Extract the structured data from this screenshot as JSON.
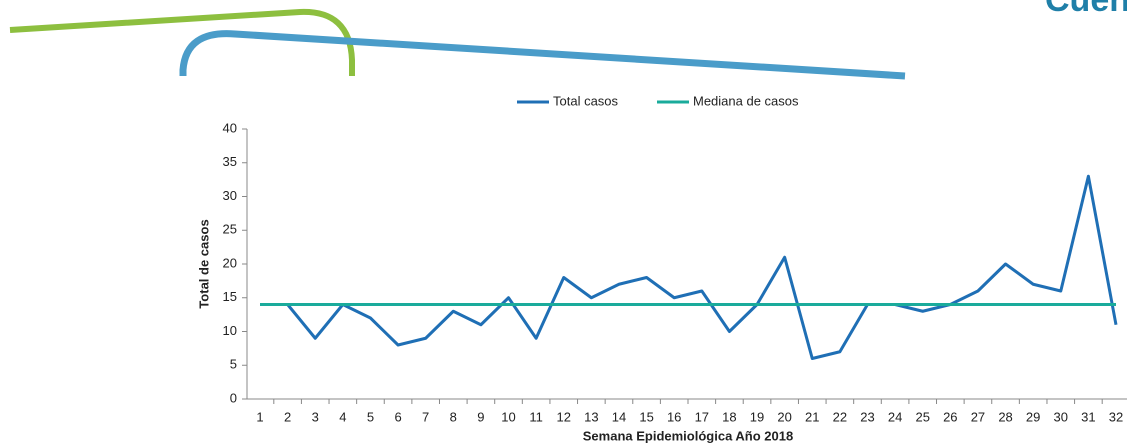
{
  "logo": "Cuenta C",
  "chart_data": {
    "type": "line",
    "x_label": "Semana Epidemiológica Año 2018",
    "y_label": "Total de casos",
    "categories": [
      1,
      2,
      3,
      4,
      5,
      6,
      7,
      8,
      9,
      10,
      11,
      12,
      13,
      14,
      15,
      16,
      17,
      18,
      19,
      20,
      21,
      22,
      23,
      24,
      25,
      26,
      27,
      28,
      29,
      30,
      31,
      32
    ],
    "series": [
      {
        "name": "Total casos",
        "color": "#1f6fb5",
        "values": [
          14,
          14,
          9,
          14,
          12,
          8,
          9,
          13,
          11,
          15,
          9,
          18,
          15,
          17,
          18,
          15,
          16,
          10,
          14,
          21,
          6,
          7,
          14,
          14,
          13,
          14,
          16,
          20,
          17,
          16,
          33,
          11
        ]
      },
      {
        "name": "Mediana de casos",
        "color": "#1aab9b",
        "values": [
          14,
          14,
          14,
          14,
          14,
          14,
          14,
          14,
          14,
          14,
          14,
          14,
          14,
          14,
          14,
          14,
          14,
          14,
          14,
          14,
          14,
          14,
          14,
          14,
          14,
          14,
          14,
          14,
          14,
          14,
          14,
          14
        ]
      }
    ],
    "ylim": [
      0,
      40
    ],
    "yticks": [
      0,
      5,
      10,
      15,
      20,
      25,
      30,
      35,
      40
    ],
    "legend": "top"
  }
}
